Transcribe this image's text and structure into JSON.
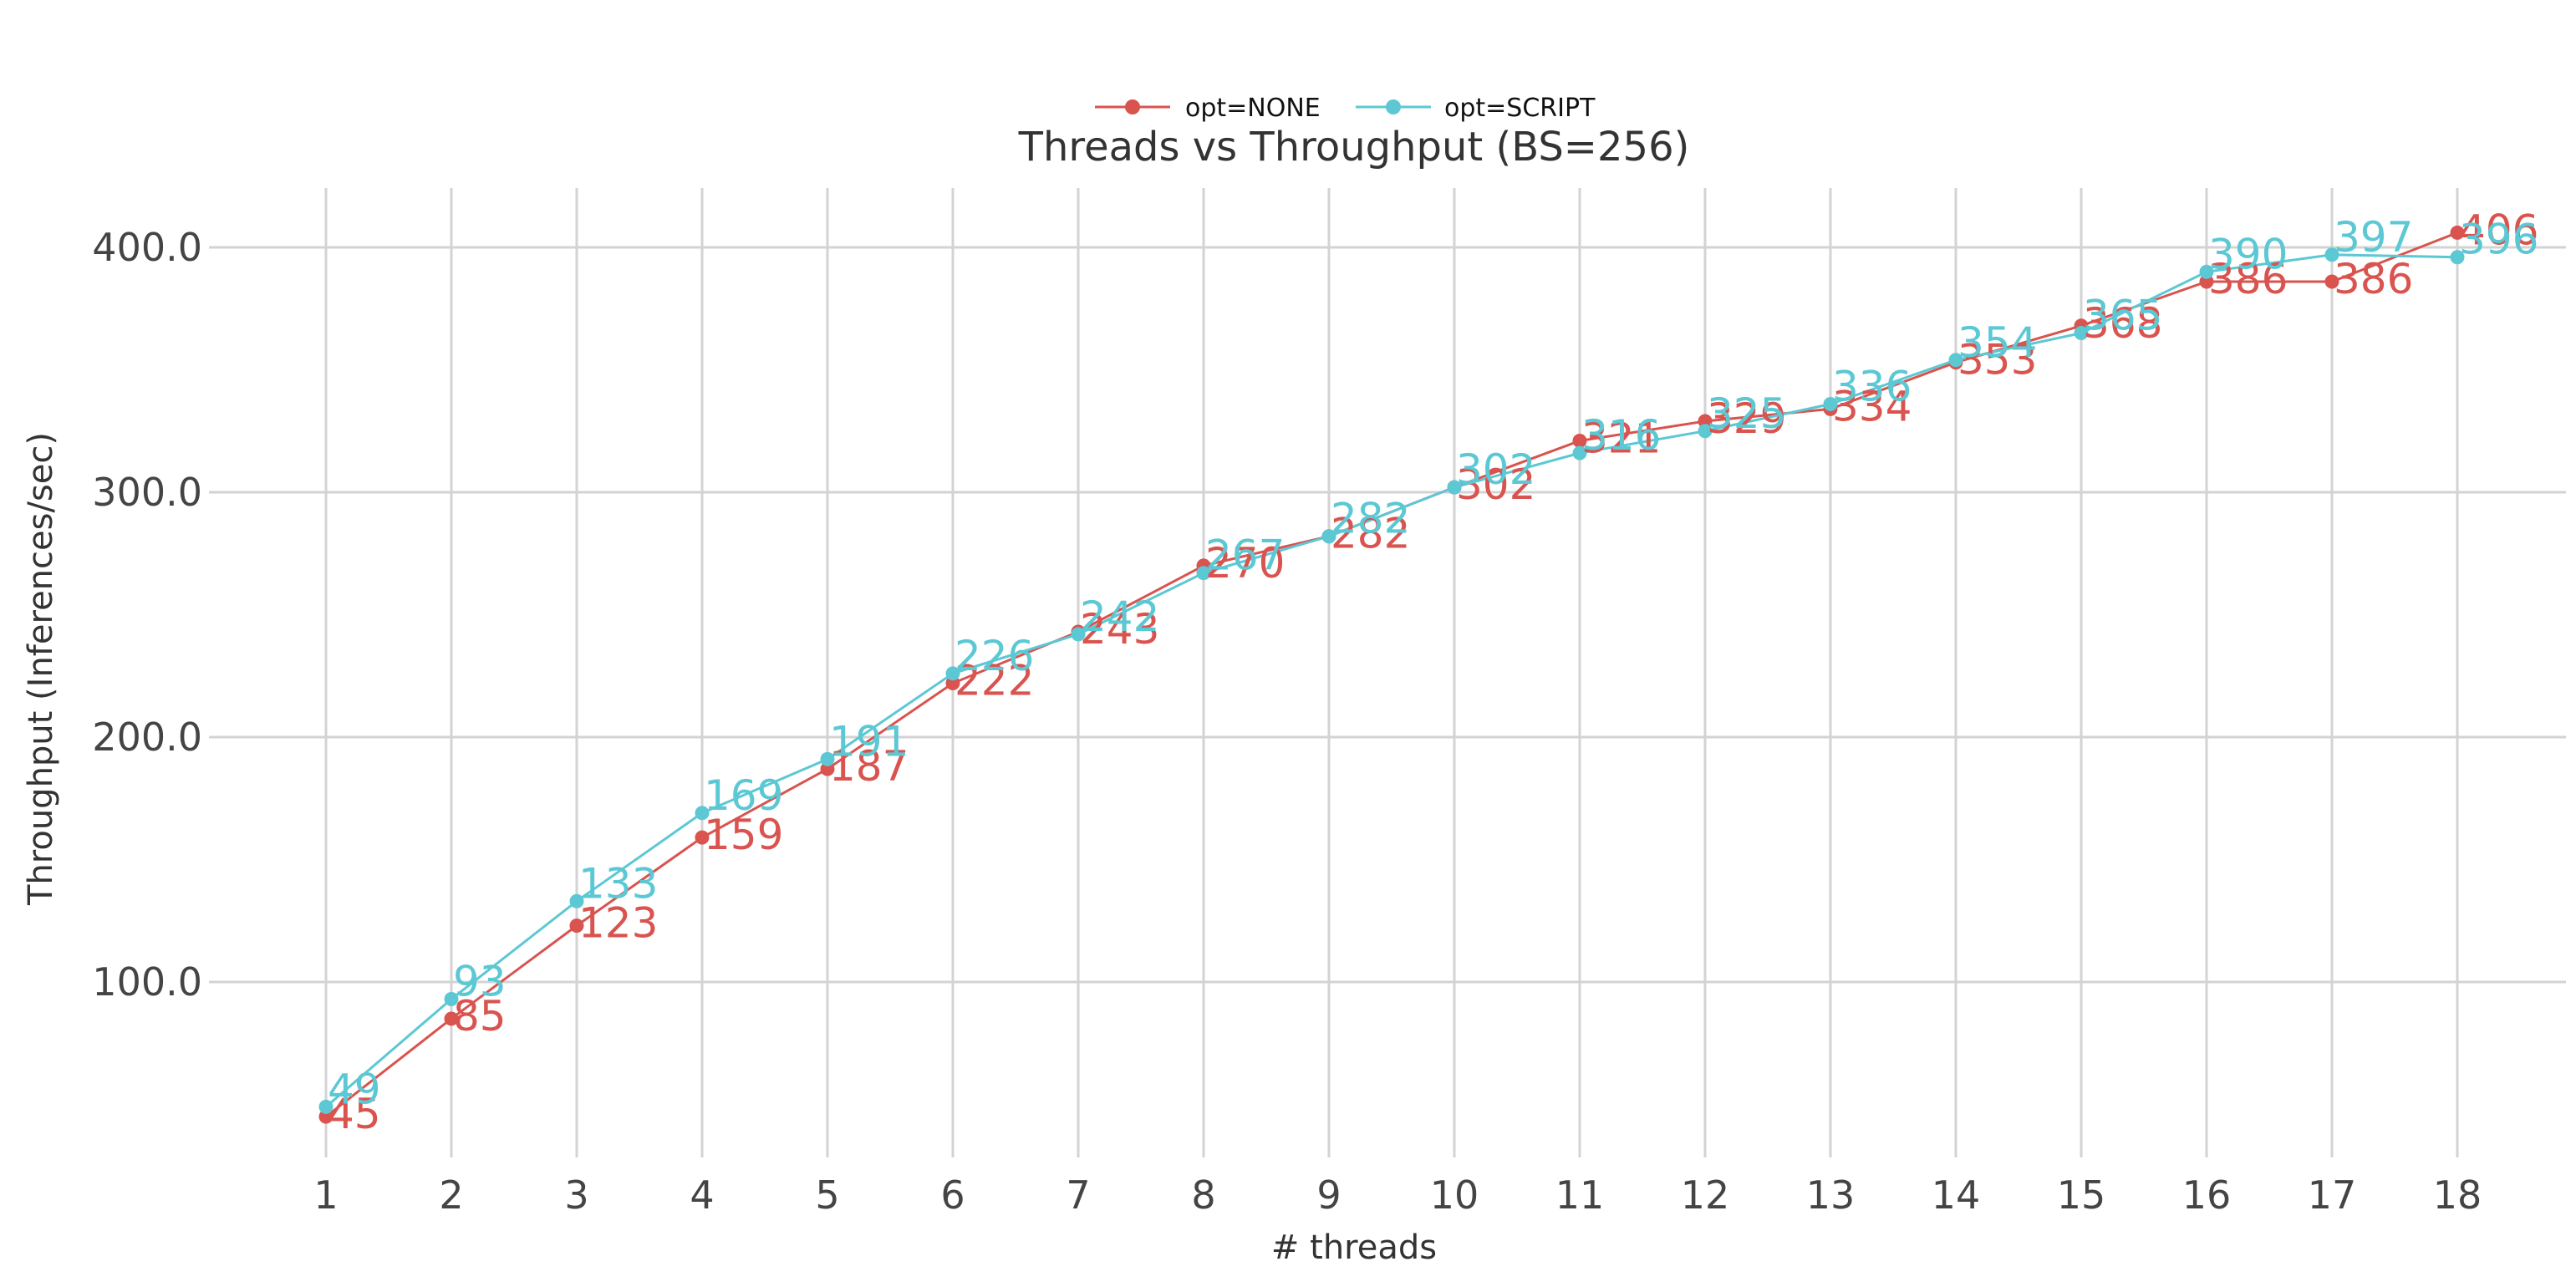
{
  "chart_data": {
    "type": "line",
    "title": "Threads vs Throughput (BS=256)",
    "xlabel": "# threads",
    "ylabel": "Throughput (Inferences/sec)",
    "x": [
      1,
      2,
      3,
      4,
      5,
      6,
      7,
      8,
      9,
      10,
      11,
      12,
      13,
      14,
      15,
      16,
      17,
      18
    ],
    "ylim": [
      25,
      425
    ],
    "yticks": [
      100.0,
      200.0,
      300.0,
      400.0
    ],
    "ytick_labels": [
      "100.0",
      "200.0",
      "300.0",
      "400.0"
    ],
    "grid": true,
    "legend_position": "top-center",
    "series": [
      {
        "name": "opt=NONE",
        "color": "#d9534f",
        "values": [
          45,
          85,
          123,
          159,
          187,
          222,
          243,
          270,
          282,
          302,
          321,
          329,
          334,
          353,
          368,
          386,
          386,
          406
        ],
        "labels": [
          "45",
          "85",
          "123",
          "159",
          "187",
          "222",
          "243",
          "270",
          "282",
          "302",
          "321",
          "329",
          "334",
          "353",
          "368",
          "386",
          "386",
          "406"
        ]
      },
      {
        "name": "opt=SCRIPT",
        "color": "#5bc8d4",
        "values": [
          49,
          93,
          133,
          169,
          191,
          226,
          242,
          267,
          282,
          302,
          316,
          325,
          336,
          354,
          365,
          390,
          397,
          396
        ],
        "labels": [
          "49",
          "93",
          "133",
          "169",
          "191",
          "226",
          "242",
          "267",
          "282",
          "302",
          "316",
          "325",
          "336",
          "354",
          "365",
          "390",
          "397",
          "396"
        ]
      }
    ]
  }
}
